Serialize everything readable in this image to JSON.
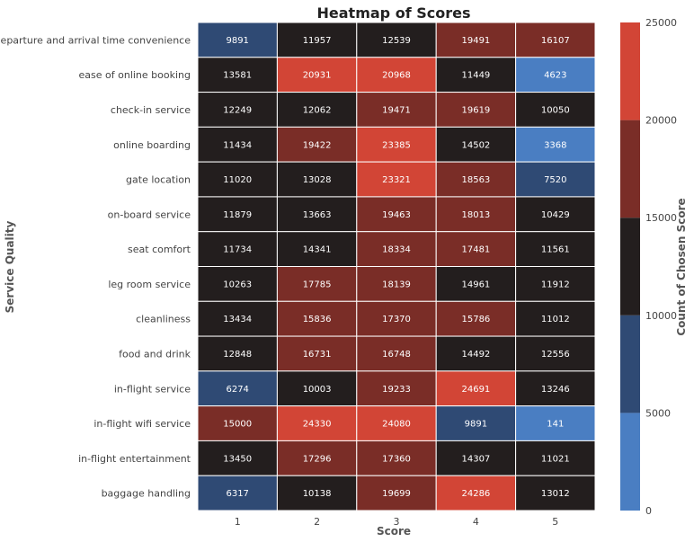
{
  "chart_data": {
    "type": "heatmap",
    "title": "Heatmap of Scores",
    "xlabel": "Score",
    "ylabel": "Service Quality",
    "colorbar_label": "Count of Chosen Score",
    "columns": [
      "1",
      "2",
      "3",
      "4",
      "5"
    ],
    "rows": [
      "departure and arrival time convenience",
      "ease of online booking",
      "check-in service",
      "online boarding",
      "gate location",
      "on-board service",
      "seat comfort",
      "leg room service",
      "cleanliness",
      "food and drink",
      "in-flight service",
      "in-flight wifi service",
      "in-flight entertainment",
      "baggage handling"
    ],
    "values": [
      [
        9891,
        11957,
        12539,
        19491,
        16107
      ],
      [
        13581,
        20931,
        20968,
        11449,
        4623
      ],
      [
        12249,
        12062,
        19471,
        19619,
        10050
      ],
      [
        11434,
        19422,
        23385,
        14502,
        3368
      ],
      [
        11020,
        13028,
        23321,
        18563,
        7520
      ],
      [
        11879,
        13663,
        19463,
        18013,
        10429
      ],
      [
        11734,
        14341,
        18334,
        17481,
        11561
      ],
      [
        10263,
        17785,
        18139,
        14961,
        11912
      ],
      [
        13434,
        15836,
        17370,
        15786,
        11012
      ],
      [
        12848,
        16731,
        16748,
        14492,
        12556
      ],
      [
        6274,
        10003,
        19233,
        24691,
        13246
      ],
      [
        15000,
        24330,
        24080,
        9891,
        141
      ],
      [
        13450,
        17296,
        17360,
        14307,
        11021
      ],
      [
        6317,
        10138,
        19699,
        24286,
        13012
      ]
    ],
    "color_scale": {
      "vmin": 0,
      "vmax": 25000,
      "bin_edges": [
        0,
        5000,
        10000,
        15000,
        20000,
        25000
      ],
      "colors": [
        "#4a7ec2",
        "#2f4a74",
        "#231e1e",
        "#7a2d27",
        "#d24536"
      ],
      "ticks": [
        "0",
        "5000",
        "10000",
        "15000",
        "20000",
        "25000"
      ]
    },
    "cell_text_color": "#ffffff",
    "grid_line_color": "#ffffff"
  }
}
